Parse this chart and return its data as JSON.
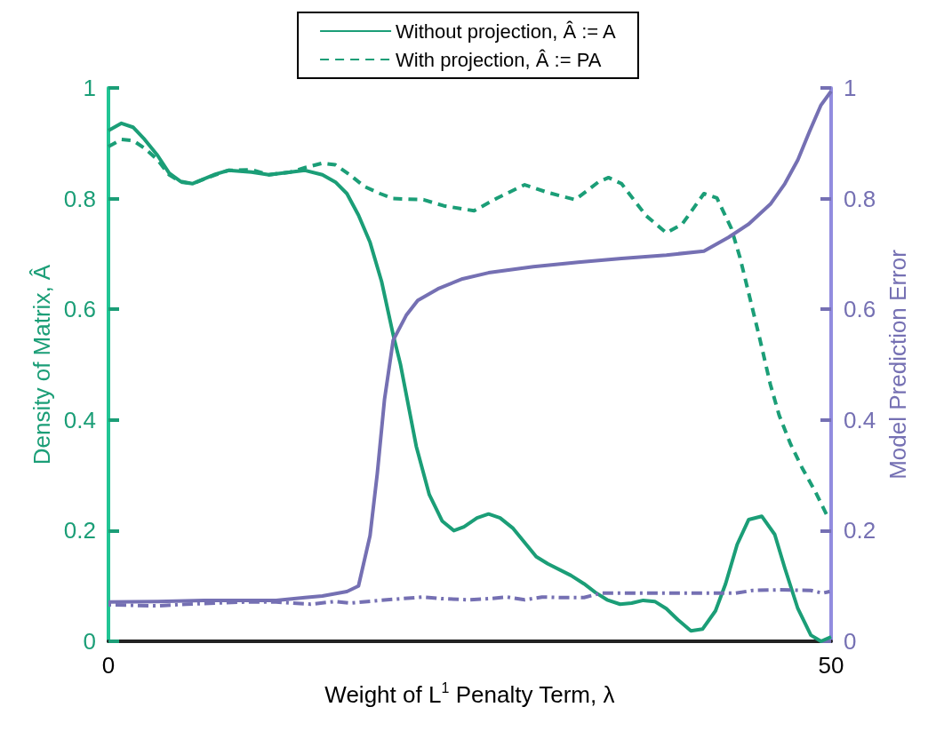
{
  "chart_data": {
    "type": "line",
    "xlabel": "Weight of L$^{1}$ Penalty Term, λ",
    "ylabel": "Density of Matrix, Â",
    "y2label": "Model Prediction Error",
    "xlim": [
      0,
      50
    ],
    "xticks": [
      0,
      50
    ],
    "ylim": [
      0,
      1
    ],
    "yticks": [
      0,
      0.2,
      0.4,
      0.6,
      0.8,
      1
    ],
    "y2lim": [
      0,
      1
    ],
    "y2ticks": [
      0,
      0.2,
      0.4,
      0.6,
      0.8,
      1
    ],
    "grid": false,
    "legend": "top",
    "marker": "none",
    "series": [
      {
        "name": "Without projection, Â := A",
        "color": "#1b9e77",
        "line_style": "solid",
        "x": [
          0,
          0.9,
          1.7,
          2.5,
          3.4,
          4.2,
          5,
          5.8,
          7.4,
          8.3,
          9.9,
          11.1,
          12.6,
          13.6,
          14.8,
          15.7,
          16.5,
          17.3,
          18.1,
          18.9,
          19.7,
          20.2,
          21.3,
          22.2,
          23.1,
          23.9,
          24.6,
          25.5,
          26.3,
          27.1,
          28,
          29.6,
          30.4,
          32,
          32.9,
          33.7,
          34.5,
          35.4,
          36.2,
          37,
          37.8,
          38.6,
          39.4,
          40.3,
          41.1,
          42,
          42.7,
          43.5,
          44.3,
          45.2,
          46.1,
          46.8,
          47.7,
          48.6,
          49.3,
          50
        ],
        "values": [
          0.923,
          0.936,
          0.929,
          0.907,
          0.878,
          0.846,
          0.831,
          0.827,
          0.844,
          0.851,
          0.848,
          0.843,
          0.848,
          0.851,
          0.843,
          0.83,
          0.809,
          0.77,
          0.721,
          0.65,
          0.554,
          0.501,
          0.352,
          0.265,
          0.217,
          0.2,
          0.207,
          0.223,
          0.23,
          0.223,
          0.204,
          0.153,
          0.14,
          0.119,
          0.104,
          0.088,
          0.075,
          0.067,
          0.069,
          0.074,
          0.072,
          0.059,
          0.039,
          0.019,
          0.022,
          0.055,
          0.104,
          0.175,
          0.22,
          0.226,
          0.193,
          0.132,
          0.059,
          0.011,
          0,
          0.008
        ]
      },
      {
        "name": "With projection, Â := PA",
        "color": "#1b9e77",
        "line_style": "dashed",
        "x": [
          0,
          0.9,
          1.7,
          2.5,
          3.4,
          4.2,
          5,
          5.8,
          7.4,
          8.3,
          9.9,
          11.1,
          12.6,
          13.6,
          14.8,
          15.7,
          16.7,
          17.7,
          18.8,
          19.7,
          21.8,
          23.2,
          25.3,
          26.9,
          28.8,
          30.4,
          32.3,
          33.9,
          34.6,
          35.5,
          37.2,
          38.6,
          39.7,
          41.2,
          42.1,
          43.1,
          43.7,
          44.3,
          45,
          45.8,
          46.4,
          47.2,
          48,
          48.9,
          49.8
        ],
        "values": [
          0.894,
          0.907,
          0.905,
          0.891,
          0.87,
          0.843,
          0.83,
          0.827,
          0.843,
          0.851,
          0.852,
          0.843,
          0.848,
          0.856,
          0.864,
          0.861,
          0.843,
          0.822,
          0.809,
          0.8,
          0.798,
          0.787,
          0.778,
          0.801,
          0.825,
          0.811,
          0.798,
          0.83,
          0.838,
          0.827,
          0.769,
          0.738,
          0.754,
          0.809,
          0.801,
          0.746,
          0.693,
          0.629,
          0.554,
          0.464,
          0.409,
          0.356,
          0.313,
          0.271,
          0.223
        ]
      },
      {
        "color": "#7570b3",
        "line_style": "solid",
        "axis": "y2",
        "x": [
          0,
          3.4,
          6.6,
          11.6,
          13.6,
          14.8,
          16.5,
          17.3,
          18.1,
          18.6,
          19.1,
          19.7,
          20.6,
          21.4,
          22.8,
          24.5,
          26.3,
          29.4,
          32.5,
          35.5,
          38.6,
          41.2,
          42.9,
          44.3,
          45.8,
          46.8,
          47.7,
          48.5,
          49.3,
          50
        ],
        "values": [
          0.071,
          0.072,
          0.074,
          0.074,
          0.079,
          0.082,
          0.09,
          0.1,
          0.191,
          0.303,
          0.437,
          0.544,
          0.589,
          0.616,
          0.637,
          0.655,
          0.666,
          0.677,
          0.685,
          0.692,
          0.698,
          0.705,
          0.73,
          0.754,
          0.79,
          0.827,
          0.87,
          0.921,
          0.969,
          0.994
        ]
      },
      {
        "color": "#7570b3",
        "line_style": "dashdot",
        "axis": "y2",
        "x": [
          0,
          3.4,
          5.4,
          9.5,
          11.6,
          14,
          15.7,
          16.7,
          18.8,
          21.8,
          23.1,
          24.9,
          26.3,
          27.6,
          28.8,
          30,
          31.4,
          32.9,
          34.1,
          37.6,
          41.7,
          43.4,
          44.6,
          46.4,
          48.6,
          49.4,
          49.9
        ],
        "values": [
          0.066,
          0.064,
          0.067,
          0.071,
          0.071,
          0.067,
          0.072,
          0.069,
          0.074,
          0.08,
          0.077,
          0.075,
          0.077,
          0.08,
          0.075,
          0.08,
          0.079,
          0.079,
          0.087,
          0.087,
          0.087,
          0.087,
          0.092,
          0.093,
          0.092,
          0.087,
          0.09
        ]
      }
    ]
  }
}
